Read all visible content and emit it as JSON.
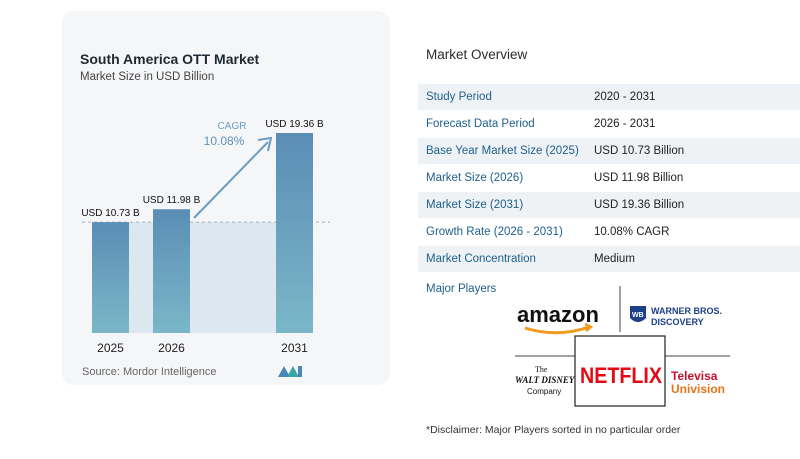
{
  "chart": {
    "title": "South America OTT Market",
    "subtitle": "Market Size in USD Billion",
    "source": "Source:  Mordor Intelligence",
    "cagr_label": "CAGR",
    "cagr_value": "10.08%"
  },
  "chart_data": {
    "type": "bar",
    "categories": [
      "2025",
      "2026",
      "2031"
    ],
    "values": [
      10.73,
      11.98,
      19.36
    ],
    "data_labels": [
      "USD 10.73 B",
      "USD 11.98 B",
      "USD 19.36 B"
    ],
    "title": "South America OTT Market",
    "subtitle": "Market Size in USD Billion",
    "ylim": [
      0,
      20
    ],
    "bar_color": "#5b92b5",
    "baseline_band_color": "#dde7ef"
  },
  "overview": {
    "title": "Market Overview",
    "rows": [
      {
        "key": "Study Period",
        "value": "2020 - 2031"
      },
      {
        "key": "Forecast Data Period",
        "value": "2026 - 2031"
      },
      {
        "key": "Base Year Market Size (2025)",
        "value": "USD 10.73 Billion"
      },
      {
        "key": "Market Size (2026)",
        "value": "USD 11.98 Billion"
      },
      {
        "key": "Market Size (2031)",
        "value": "USD 19.36 Billion"
      },
      {
        "key": "Growth Rate (2026 - 2031)",
        "value": "10.08% CAGR"
      },
      {
        "key": "Market Concentration",
        "value": "Medium"
      }
    ]
  },
  "players": {
    "title": "Major Players",
    "amazon": "amazon",
    "wb_line1": "WARNER BROS.",
    "wb_line2": "DISCOVERY",
    "wb_badge": "WB",
    "disney_line1": "The",
    "disney_line2": "WALT DISNEY",
    "disney_line3": "Company",
    "netflix": "NETFLIX",
    "televisa_line1": "Televisa",
    "televisa_line2": "Univision"
  },
  "disclaimer": "*Disclaimer: Major Players sorted in no particular order"
}
